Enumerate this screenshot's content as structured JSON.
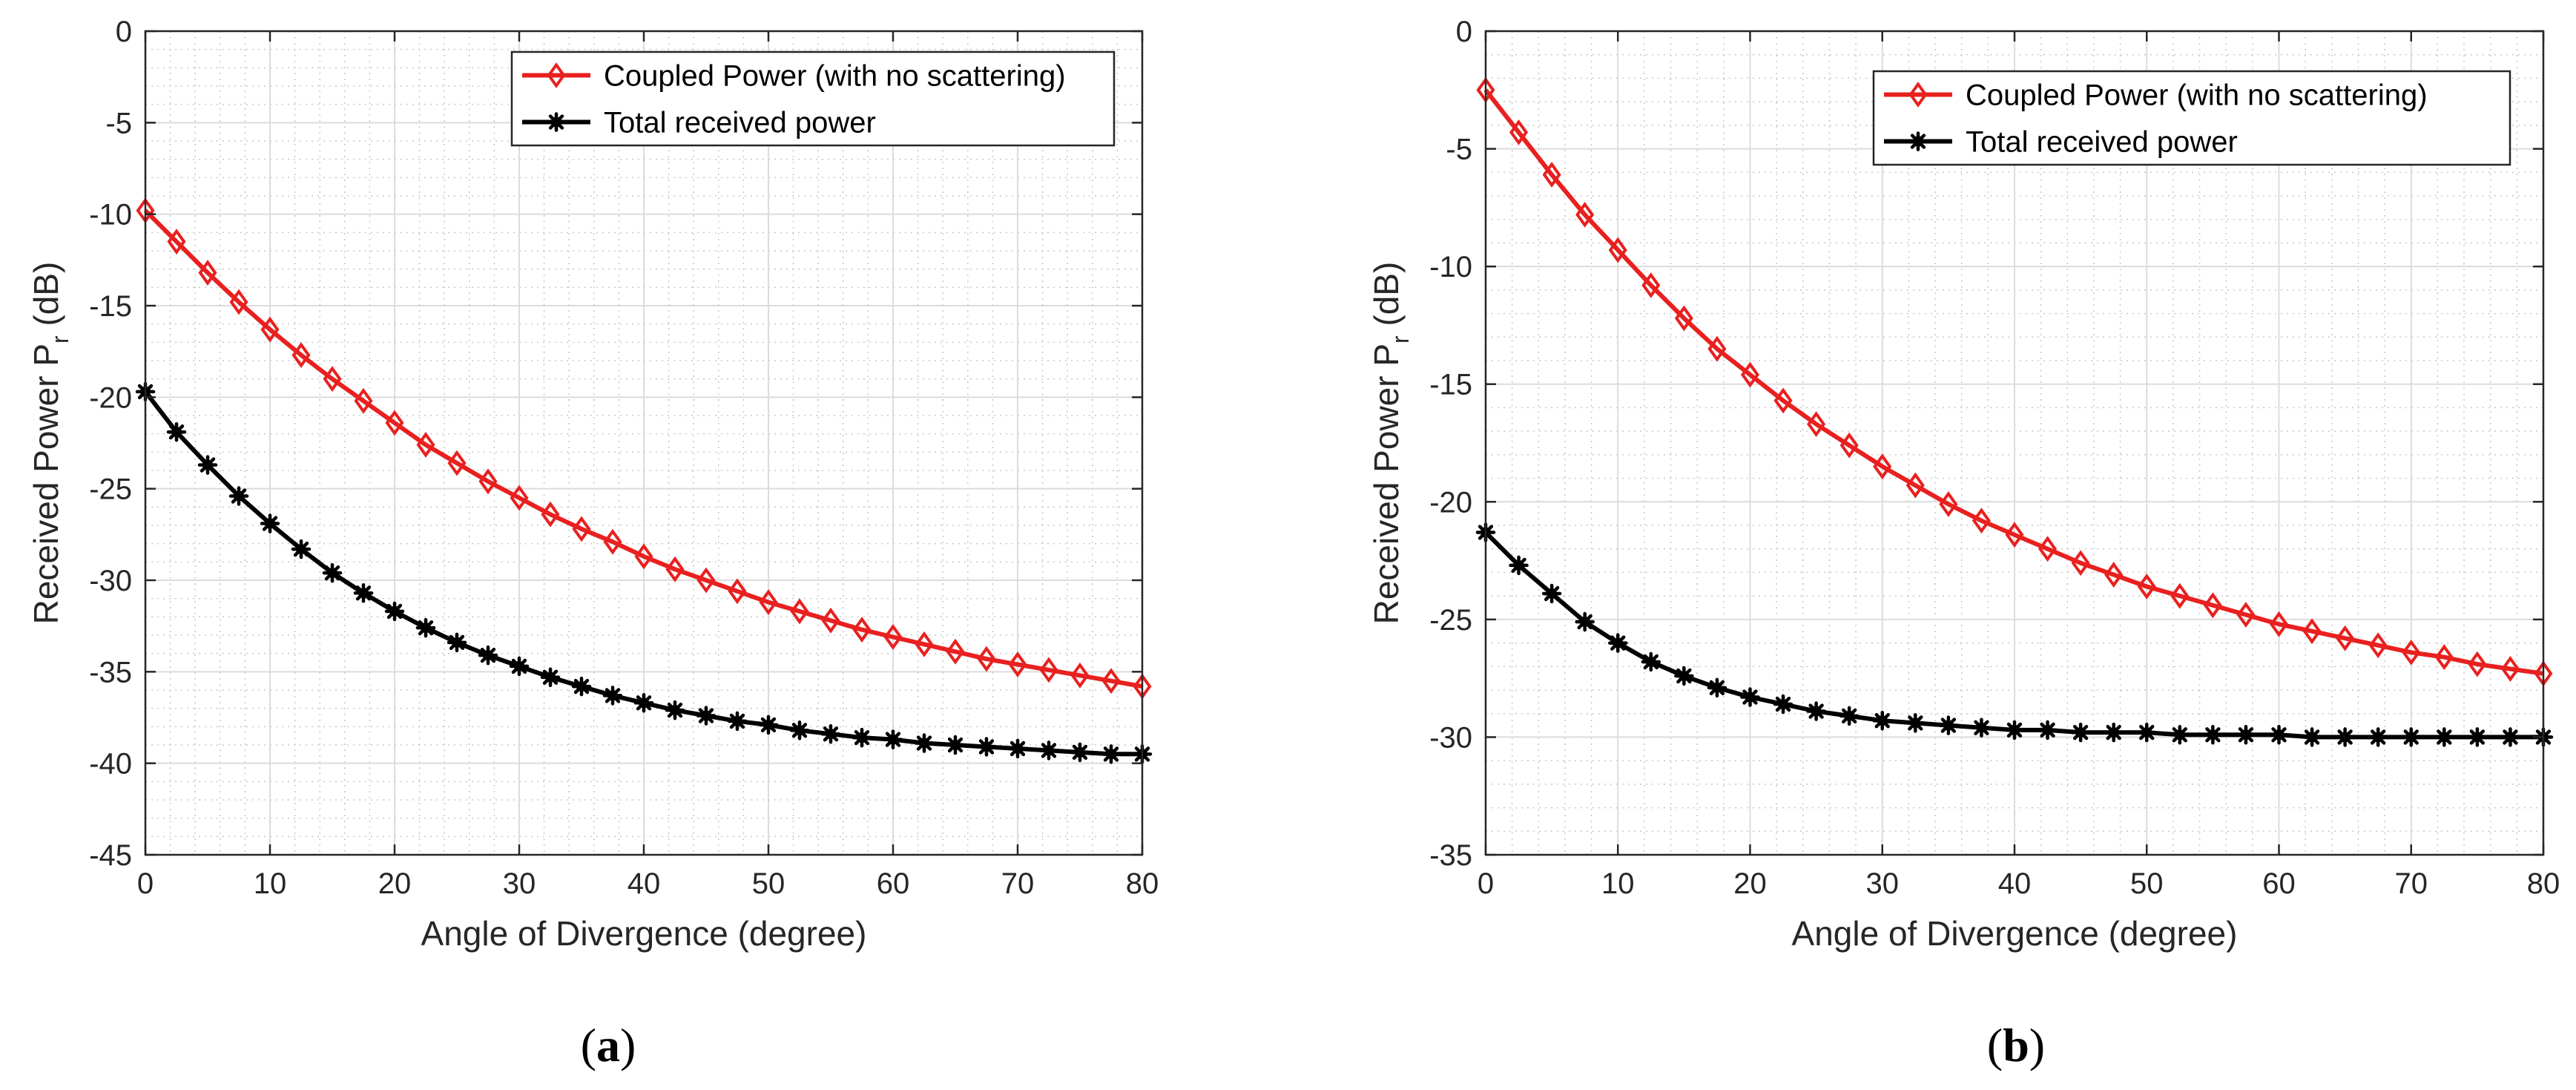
{
  "figure": {
    "panels": [
      {
        "caption": {
          "open": "(",
          "letter": "a",
          "close": ")"
        },
        "legend_entries": [
          "Coupled Power (with no scattering)",
          "Total received power"
        ]
      },
      {
        "caption": {
          "open": "(",
          "letter": "b",
          "close": ")"
        },
        "legend_entries": [
          "Coupled Power (with no scattering)",
          "Total received power"
        ]
      }
    ]
  },
  "chart_data": [
    {
      "type": "line",
      "title": "",
      "xlabel": "Angle of Divergence (degree)",
      "ylabel": "Received Power P",
      "ylabel_subscript": "r",
      "ylabel_unit": " (dB)",
      "xlim": [
        0,
        80
      ],
      "ylim": [
        -45,
        0
      ],
      "xticks": [
        0,
        10,
        20,
        30,
        40,
        50,
        60,
        70,
        80
      ],
      "yticks": [
        0,
        -5,
        -10,
        -15,
        -20,
        -25,
        -30,
        -35,
        -40,
        -45
      ],
      "xtick_labels": [
        "0",
        "10",
        "20",
        "30",
        "40",
        "50",
        "60",
        "70",
        "80"
      ],
      "ytick_labels": [
        "0",
        "-5",
        "-10",
        "-15",
        "-20",
        "-25",
        "-30",
        "-35",
        "-40",
        "-45"
      ],
      "grid": true,
      "legend_position": "top-right",
      "x": [
        0,
        2.5,
        5,
        7.5,
        10,
        12.5,
        15,
        17.5,
        20,
        22.5,
        25,
        27.5,
        30,
        32.5,
        35,
        37.5,
        40,
        42.5,
        45,
        47.5,
        50,
        52.5,
        55,
        57.5,
        60,
        62.5,
        65,
        67.5,
        70,
        72.5,
        75,
        77.5,
        80
      ],
      "series": [
        {
          "name": "Coupled Power (with no scattering)",
          "color": "#e8201f",
          "marker": "diamond",
          "values": [
            -9.8,
            -11.5,
            -13.2,
            -14.8,
            -16.3,
            -17.7,
            -19.0,
            -20.2,
            -21.4,
            -22.6,
            -23.6,
            -24.6,
            -25.5,
            -26.4,
            -27.2,
            -27.9,
            -28.7,
            -29.4,
            -30.0,
            -30.6,
            -31.2,
            -31.7,
            -32.2,
            -32.7,
            -33.1,
            -33.5,
            -33.9,
            -34.3,
            -34.6,
            -34.9,
            -35.2,
            -35.5,
            -35.8
          ]
        },
        {
          "name": "Total received power",
          "color": "#000000",
          "marker": "asterisk",
          "values": [
            -19.7,
            -21.9,
            -23.7,
            -25.4,
            -26.9,
            -28.3,
            -29.6,
            -30.7,
            -31.7,
            -32.6,
            -33.4,
            -34.1,
            -34.7,
            -35.3,
            -35.8,
            -36.3,
            -36.7,
            -37.1,
            -37.4,
            -37.7,
            -37.9,
            -38.2,
            -38.4,
            -38.6,
            -38.7,
            -38.9,
            -39.0,
            -39.1,
            -39.2,
            -39.3,
            -39.4,
            -39.5,
            -39.5
          ]
        }
      ]
    },
    {
      "type": "line",
      "title": "",
      "xlabel": "Angle of Divergence (degree)",
      "ylabel": "Received Power P",
      "ylabel_subscript": "r",
      "ylabel_unit": " (dB)",
      "xlim": [
        0,
        80
      ],
      "ylim": [
        -35,
        0
      ],
      "xticks": [
        0,
        10,
        20,
        30,
        40,
        50,
        60,
        70,
        80
      ],
      "yticks": [
        0,
        -5,
        -10,
        -15,
        -20,
        -25,
        -30,
        -35
      ],
      "xtick_labels": [
        "0",
        "10",
        "20",
        "30",
        "40",
        "50",
        "60",
        "70",
        "80"
      ],
      "ytick_labels": [
        "0",
        "-5",
        "-10",
        "-15",
        "-20",
        "-25",
        "-30",
        "-35"
      ],
      "grid": true,
      "legend_position": "top-right",
      "x": [
        0,
        2.5,
        5,
        7.5,
        10,
        12.5,
        15,
        17.5,
        20,
        22.5,
        25,
        27.5,
        30,
        32.5,
        35,
        37.5,
        40,
        42.5,
        45,
        47.5,
        50,
        52.5,
        55,
        57.5,
        60,
        62.5,
        65,
        67.5,
        70,
        72.5,
        75,
        77.5,
        80
      ],
      "series": [
        {
          "name": "Coupled Power (with no scattering)",
          "color": "#e8201f",
          "marker": "diamond",
          "values": [
            -2.5,
            -4.3,
            -6.1,
            -7.8,
            -9.3,
            -10.8,
            -12.2,
            -13.5,
            -14.6,
            -15.7,
            -16.7,
            -17.6,
            -18.5,
            -19.3,
            -20.1,
            -20.8,
            -21.4,
            -22.0,
            -22.6,
            -23.1,
            -23.6,
            -24.0,
            -24.4,
            -24.8,
            -25.2,
            -25.5,
            -25.8,
            -26.1,
            -26.4,
            -26.6,
            -26.9,
            -27.1,
            -27.3
          ]
        },
        {
          "name": "Total received power",
          "color": "#000000",
          "marker": "asterisk",
          "values": [
            -21.3,
            -22.7,
            -23.9,
            -25.1,
            -26.0,
            -26.8,
            -27.4,
            -27.9,
            -28.3,
            -28.6,
            -28.9,
            -29.1,
            -29.3,
            -29.4,
            -29.5,
            -29.6,
            -29.7,
            -29.7,
            -29.8,
            -29.8,
            -29.8,
            -29.9,
            -29.9,
            -29.9,
            -29.9,
            -30.0,
            -30.0,
            -30.0,
            -30.0,
            -30.0,
            -30.0,
            -30.0,
            -30.0
          ]
        }
      ]
    }
  ]
}
